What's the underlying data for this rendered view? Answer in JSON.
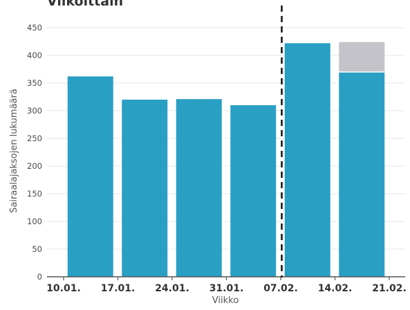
{
  "chart_data": {
    "type": "bar",
    "title": "Viikoittain",
    "xlabel": "Viikko",
    "ylabel": "Sairaalajaksojen lukumäärä",
    "ylim": [
      0,
      475
    ],
    "yticks": [
      0,
      50,
      100,
      150,
      200,
      250,
      300,
      350,
      400,
      450
    ],
    "xtick_labels": [
      "10.01.",
      "17.01.",
      "24.01.",
      "31.01.",
      "07.02.",
      "14.02.",
      "21.02."
    ],
    "categories": [
      "10.01.",
      "17.01.",
      "24.01.",
      "31.01.",
      "07.02.",
      "14.02."
    ],
    "series": [
      {
        "values": [
          362,
          320,
          321,
          310,
          422,
          369
        ],
        "color": "#2a9fc4"
      },
      {
        "values": [
          0,
          0,
          0,
          0,
          0,
          55
        ],
        "color": "#c3c3c9"
      }
    ],
    "vertical_line": {
      "between": [
        "31.01.",
        "07.02."
      ],
      "style": "dashed",
      "color": "#111111"
    },
    "grid": "horizontal",
    "legend": "none"
  }
}
